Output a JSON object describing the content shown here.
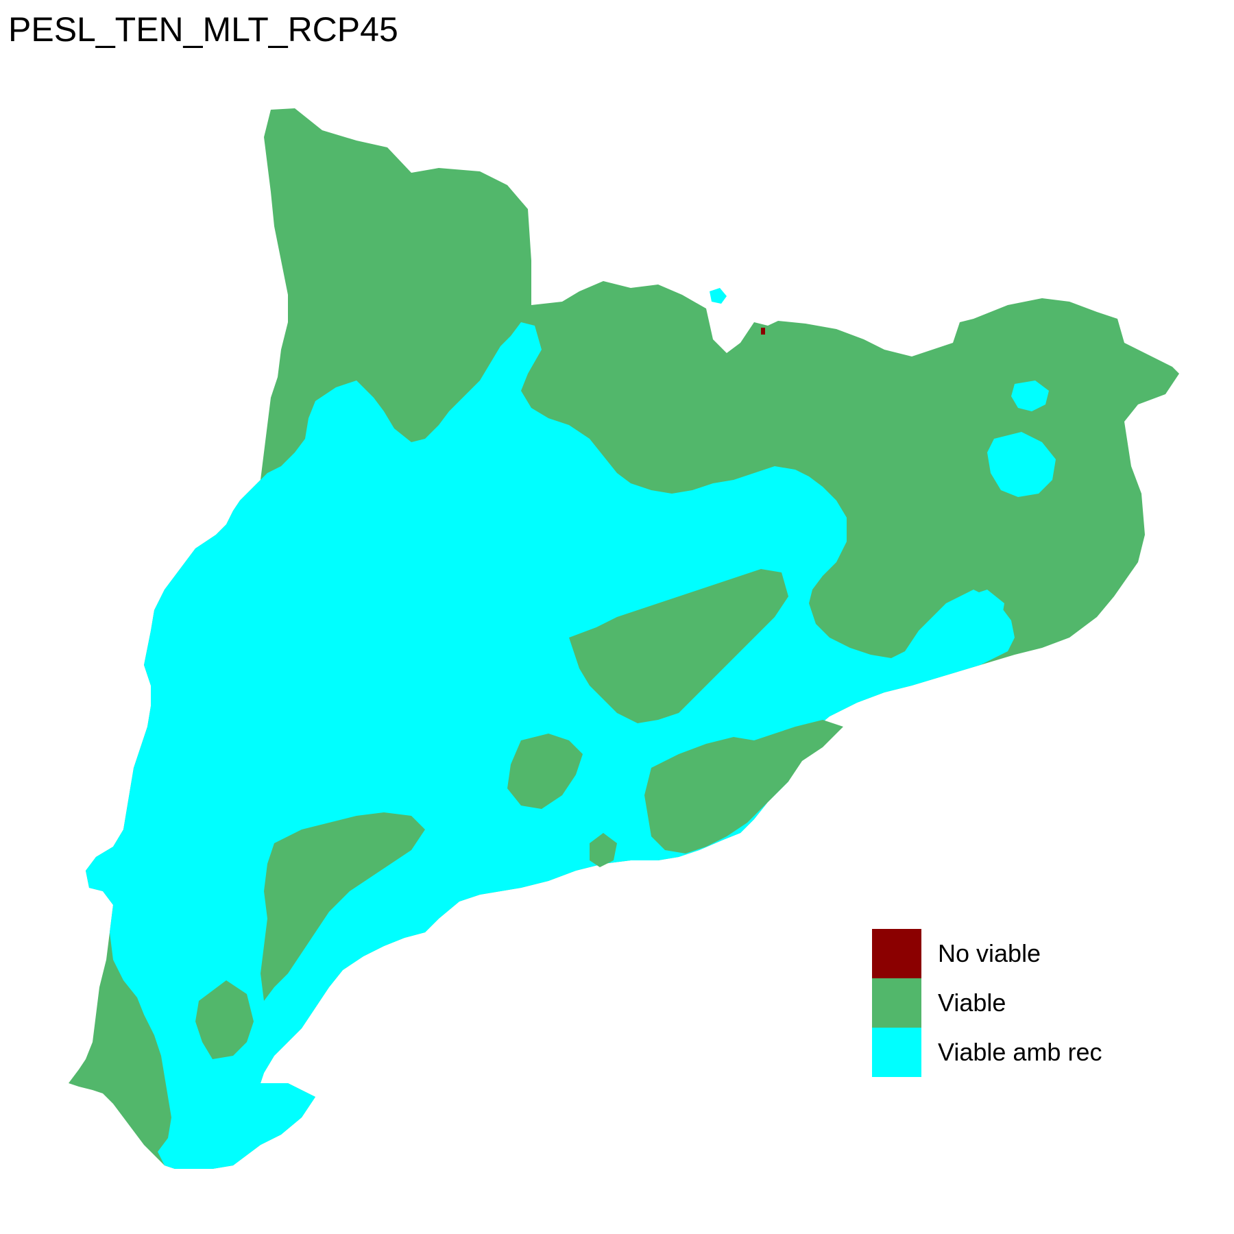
{
  "title": "PESL_TEN_MLT_RCP45",
  "colors": {
    "no_viable": "#8b0000",
    "viable": "#52b76b",
    "viable_amb_rec": "#00ffff"
  },
  "legend": [
    {
      "label": "No viable",
      "color": "#8b0000"
    },
    {
      "label": "Viable",
      "color": "#52b76b"
    },
    {
      "label": "Viable amb rec",
      "color": "#00ffff"
    }
  ]
}
